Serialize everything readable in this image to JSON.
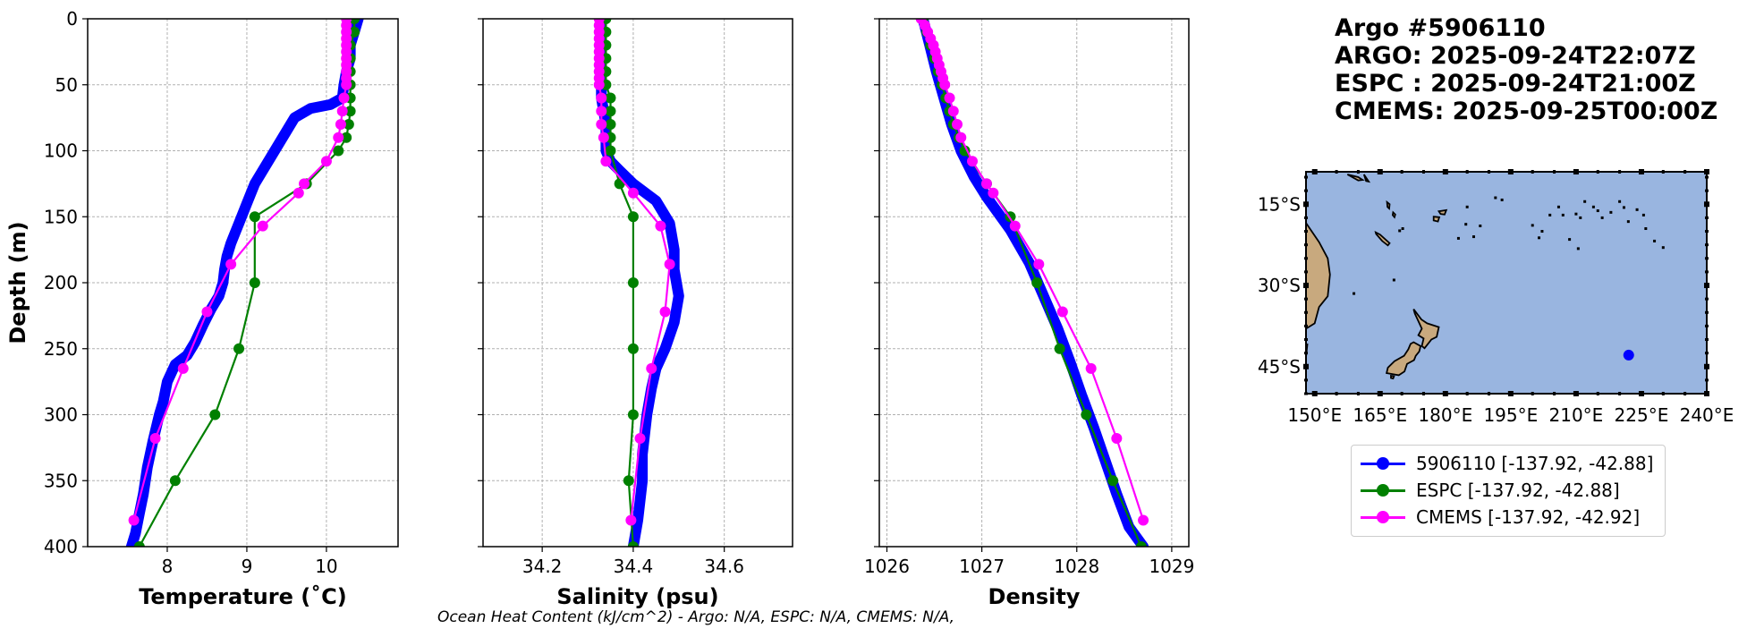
{
  "chart_data": [
    {
      "type": "line",
      "panel": "temperature",
      "xlabel": "Temperature (˚C)",
      "ylabel": "Depth (m)",
      "xlim": [
        7.0,
        10.9
      ],
      "ylim": [
        400,
        0
      ],
      "xticks": [
        8,
        9,
        10
      ],
      "yticks": [
        0,
        50,
        100,
        150,
        200,
        250,
        300,
        350,
        400
      ],
      "grid": true,
      "series": [
        {
          "name": "5906110",
          "color": "#0000ff",
          "points": [
            [
              10.4,
              0
            ],
            [
              10.35,
              10
            ],
            [
              10.3,
              20
            ],
            [
              10.3,
              30
            ],
            [
              10.25,
              40
            ],
            [
              10.22,
              50
            ],
            [
              10.2,
              60
            ],
            [
              10.05,
              65
            ],
            [
              9.8,
              68
            ],
            [
              9.6,
              75
            ],
            [
              9.5,
              85
            ],
            [
              9.4,
              95
            ],
            [
              9.3,
              105
            ],
            [
              9.2,
              115
            ],
            [
              9.1,
              125
            ],
            [
              9.0,
              140
            ],
            [
              8.9,
              155
            ],
            [
              8.8,
              170
            ],
            [
              8.75,
              180
            ],
            [
              8.72,
              190
            ],
            [
              8.7,
              200
            ],
            [
              8.65,
              210
            ],
            [
              8.55,
              220
            ],
            [
              8.45,
              232
            ],
            [
              8.35,
              245
            ],
            [
              8.25,
              255
            ],
            [
              8.1,
              262
            ],
            [
              8.0,
              275
            ],
            [
              7.95,
              290
            ],
            [
              7.9,
              300
            ],
            [
              7.82,
              320
            ],
            [
              7.75,
              340
            ],
            [
              7.7,
              360
            ],
            [
              7.65,
              375
            ],
            [
              7.6,
              390
            ],
            [
              7.55,
              400
            ]
          ]
        },
        {
          "name": "ESPC",
          "color": "#008000",
          "points": [
            [
              10.35,
              0
            ],
            [
              10.35,
              10
            ],
            [
              10.3,
              20
            ],
            [
              10.3,
              30
            ],
            [
              10.3,
              40
            ],
            [
              10.3,
              50
            ],
            [
              10.3,
              60
            ],
            [
              10.3,
              70
            ],
            [
              10.28,
              80
            ],
            [
              10.25,
              90
            ],
            [
              10.15,
              100
            ],
            [
              9.75,
              125
            ],
            [
              9.1,
              150
            ],
            [
              9.1,
              200
            ],
            [
              8.9,
              250
            ],
            [
              8.6,
              300
            ],
            [
              8.1,
              350
            ],
            [
              7.65,
              400
            ]
          ]
        },
        {
          "name": "CMEMS",
          "color": "#ff00ff",
          "points": [
            [
              10.25,
              0
            ],
            [
              10.25,
              5
            ],
            [
              10.25,
              10
            ],
            [
              10.25,
              15
            ],
            [
              10.25,
              20
            ],
            [
              10.25,
              25
            ],
            [
              10.25,
              30
            ],
            [
              10.25,
              35
            ],
            [
              10.25,
              40
            ],
            [
              10.25,
              45
            ],
            [
              10.25,
              50
            ],
            [
              10.22,
              60
            ],
            [
              10.2,
              70
            ],
            [
              10.18,
              80
            ],
            [
              10.15,
              90
            ],
            [
              10.0,
              108
            ],
            [
              9.72,
              125
            ],
            [
              9.65,
              132
            ],
            [
              9.2,
              157
            ],
            [
              8.8,
              186
            ],
            [
              8.5,
              222
            ],
            [
              8.2,
              265
            ],
            [
              7.85,
              318
            ],
            [
              7.58,
              380
            ]
          ]
        }
      ]
    },
    {
      "type": "line",
      "panel": "salinity",
      "xlabel": "Salinity (psu)",
      "xlim": [
        34.07,
        34.75
      ],
      "ylim": [
        400,
        0
      ],
      "xticks": [
        34.2,
        34.4,
        34.6
      ],
      "yticks": [
        0,
        50,
        100,
        150,
        200,
        250,
        300,
        350,
        400
      ],
      "grid": true,
      "series": [
        {
          "name": "5906110",
          "color": "#0000ff",
          "points": [
            [
              34.33,
              0
            ],
            [
              34.33,
              20
            ],
            [
              34.33,
              40
            ],
            [
              34.33,
              60
            ],
            [
              34.34,
              80
            ],
            [
              34.34,
              100
            ],
            [
              34.35,
              108
            ],
            [
              34.37,
              115
            ],
            [
              34.4,
              125
            ],
            [
              34.45,
              138
            ],
            [
              34.48,
              155
            ],
            [
              34.49,
              175
            ],
            [
              34.49,
              190
            ],
            [
              34.5,
              210
            ],
            [
              34.49,
              230
            ],
            [
              34.47,
              250
            ],
            [
              34.45,
              265
            ],
            [
              34.44,
              280
            ],
            [
              34.43,
              300
            ],
            [
              34.42,
              330
            ],
            [
              34.42,
              350
            ],
            [
              34.41,
              380
            ],
            [
              34.4,
              400
            ]
          ]
        },
        {
          "name": "ESPC",
          "color": "#008000",
          "points": [
            [
              34.34,
              0
            ],
            [
              34.34,
              10
            ],
            [
              34.34,
              20
            ],
            [
              34.34,
              30
            ],
            [
              34.34,
              40
            ],
            [
              34.34,
              50
            ],
            [
              34.35,
              60
            ],
            [
              34.35,
              70
            ],
            [
              34.35,
              80
            ],
            [
              34.35,
              90
            ],
            [
              34.35,
              100
            ],
            [
              34.37,
              125
            ],
            [
              34.4,
              150
            ],
            [
              34.4,
              200
            ],
            [
              34.4,
              250
            ],
            [
              34.4,
              300
            ],
            [
              34.39,
              350
            ],
            [
              34.4,
              400
            ]
          ]
        },
        {
          "name": "CMEMS",
          "color": "#ff00ff",
          "points": [
            [
              34.325,
              0
            ],
            [
              34.325,
              5
            ],
            [
              34.325,
              10
            ],
            [
              34.325,
              15
            ],
            [
              34.325,
              20
            ],
            [
              34.325,
              25
            ],
            [
              34.325,
              30
            ],
            [
              34.325,
              35
            ],
            [
              34.325,
              40
            ],
            [
              34.325,
              45
            ],
            [
              34.325,
              50
            ],
            [
              34.33,
              60
            ],
            [
              34.33,
              70
            ],
            [
              34.33,
              80
            ],
            [
              34.335,
              90
            ],
            [
              34.34,
              108
            ],
            [
              34.4,
              132
            ],
            [
              34.46,
              157
            ],
            [
              34.48,
              186
            ],
            [
              34.47,
              222
            ],
            [
              34.44,
              265
            ],
            [
              34.415,
              318
            ],
            [
              34.395,
              380
            ]
          ]
        }
      ]
    },
    {
      "type": "line",
      "panel": "density",
      "xlabel": "Density",
      "xlim": [
        1025.92,
        1029.18
      ],
      "ylim": [
        400,
        0
      ],
      "xticks": [
        1026,
        1027,
        1028,
        1029
      ],
      "yticks": [
        0,
        50,
        100,
        150,
        200,
        250,
        300,
        350,
        400
      ],
      "grid": true,
      "series": [
        {
          "name": "5906110",
          "color": "#0000ff",
          "points": [
            [
              1026.38,
              0
            ],
            [
              1026.45,
              20
            ],
            [
              1026.52,
              40
            ],
            [
              1026.6,
              60
            ],
            [
              1026.68,
              80
            ],
            [
              1026.78,
              100
            ],
            [
              1026.92,
              120
            ],
            [
              1027.05,
              135
            ],
            [
              1027.3,
              160
            ],
            [
              1027.5,
              185
            ],
            [
              1027.65,
              210
            ],
            [
              1027.8,
              235
            ],
            [
              1027.93,
              260
            ],
            [
              1028.05,
              285
            ],
            [
              1028.18,
              310
            ],
            [
              1028.3,
              335
            ],
            [
              1028.42,
              360
            ],
            [
              1028.55,
              385
            ],
            [
              1028.7,
              400
            ]
          ]
        },
        {
          "name": "ESPC",
          "color": "#008000",
          "points": [
            [
              1026.38,
              0
            ],
            [
              1026.42,
              10
            ],
            [
              1026.46,
              20
            ],
            [
              1026.5,
              30
            ],
            [
              1026.54,
              40
            ],
            [
              1026.58,
              50
            ],
            [
              1026.62,
              60
            ],
            [
              1026.66,
              70
            ],
            [
              1026.7,
              80
            ],
            [
              1026.76,
              90
            ],
            [
              1026.82,
              100
            ],
            [
              1027.05,
              125
            ],
            [
              1027.3,
              150
            ],
            [
              1027.58,
              200
            ],
            [
              1027.82,
              250
            ],
            [
              1028.1,
              300
            ],
            [
              1028.38,
              350
            ],
            [
              1028.68,
              400
            ]
          ]
        },
        {
          "name": "CMEMS",
          "color": "#ff00ff",
          "points": [
            [
              1026.36,
              0
            ],
            [
              1026.4,
              5
            ],
            [
              1026.43,
              10
            ],
            [
              1026.46,
              15
            ],
            [
              1026.49,
              20
            ],
            [
              1026.51,
              25
            ],
            [
              1026.53,
              30
            ],
            [
              1026.55,
              35
            ],
            [
              1026.57,
              40
            ],
            [
              1026.59,
              45
            ],
            [
              1026.61,
              50
            ],
            [
              1026.66,
              60
            ],
            [
              1026.7,
              70
            ],
            [
              1026.74,
              80
            ],
            [
              1026.78,
              90
            ],
            [
              1026.9,
              108
            ],
            [
              1027.05,
              125
            ],
            [
              1027.12,
              132
            ],
            [
              1027.35,
              157
            ],
            [
              1027.6,
              186
            ],
            [
              1027.85,
              222
            ],
            [
              1028.15,
              265
            ],
            [
              1028.42,
              318
            ],
            [
              1028.7,
              380
            ]
          ]
        }
      ]
    },
    {
      "type": "map",
      "panel": "location",
      "lon_range": [
        148,
        240
      ],
      "lat_range": [
        -50,
        -9
      ],
      "lon_ticks": [
        150,
        165,
        180,
        195,
        210,
        225,
        240
      ],
      "lon_tick_labels": [
        "150°E",
        "165°E",
        "180°E",
        "195°E",
        "210°E",
        "225°E",
        "240°E"
      ],
      "lat_ticks": [
        -15,
        -30,
        -45
      ],
      "lat_tick_labels": [
        "15°S",
        "30°S",
        "45°S"
      ],
      "ocean_color": "#99b5e0",
      "land_color": "#c8a97e",
      "float_position": {
        "lon": 222.08,
        "lat": -42.88,
        "color": "#0000ff"
      }
    }
  ],
  "info": {
    "title": "Argo #5906110",
    "argo_time": "ARGO: 2025-09-24T22:07Z",
    "espc_time": "ESPC : 2025-09-24T21:00Z",
    "cmems_time": "CMEMS: 2025-09-25T00:00Z"
  },
  "legend": [
    {
      "label": "5906110 [-137.92, -42.88]",
      "color": "#0000ff"
    },
    {
      "label": "ESPC [-137.92, -42.88]",
      "color": "#008000"
    },
    {
      "label": "CMEMS [-137.92, -42.92]",
      "color": "#ff00ff"
    }
  ],
  "footer": "Ocean Heat Content (kJ/cm^2) - Argo: N/A,  ESPC: N/A,  CMEMS: N/A,"
}
